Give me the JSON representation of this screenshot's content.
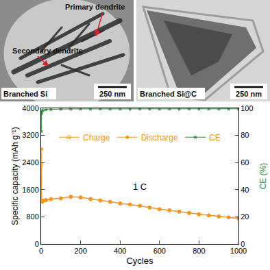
{
  "images": [
    {
      "label": "Branched Si",
      "scale": "250 nm",
      "arrows": [
        "Primary dendrite",
        "Secondary dendrite"
      ]
    },
    {
      "label": "Branched Si@C",
      "scale": "250 nm"
    }
  ],
  "chart_data": {
    "type": "line",
    "annotations": [
      "1 C"
    ],
    "x_label": "Cycles",
    "y_label": "Specific capacity (mAh g⁻¹)",
    "y2_label": "CE (%)",
    "x": [
      1,
      2,
      5,
      10,
      25,
      50,
      100,
      150,
      200,
      250,
      300,
      350,
      400,
      450,
      500,
      550,
      600,
      650,
      700,
      750,
      800,
      850,
      900,
      950,
      1000
    ],
    "series": [
      {
        "name": "Charge",
        "color": "#f7941d",
        "marker": "circle-open",
        "values": [
          2350,
          1280,
          1240,
          1270,
          1290,
          1320,
          1340,
          1390,
          1370,
          1320,
          1280,
          1240,
          1190,
          1160,
          1120,
          1070,
          1020,
          990,
          950,
          910,
          870,
          840,
          810,
          780,
          750
        ]
      },
      {
        "name": "Discharge",
        "color": "#f7941d",
        "marker": "circle",
        "values": [
          2800,
          1300,
          1250,
          1280,
          1300,
          1330,
          1350,
          1400,
          1380,
          1330,
          1290,
          1250,
          1200,
          1170,
          1130,
          1080,
          1030,
          1000,
          960,
          920,
          880,
          850,
          820,
          790,
          760
        ]
      },
      {
        "name": "CE",
        "color": "#2e8b3e",
        "marker": "star",
        "axis": "y2",
        "values": [
          83,
          96,
          98,
          98.5,
          99,
          99.2,
          99.4,
          99.5,
          99.5,
          99.5,
          99.6,
          99.6,
          99.6,
          99.6,
          99.6,
          99.6,
          99.6,
          99.6,
          99.6,
          99.6,
          99.6,
          99.6,
          99.6,
          99.6,
          99.6
        ]
      }
    ],
    "xlim": [
      0,
      1000
    ],
    "xticks": [
      0,
      200,
      400,
      600,
      800,
      1000
    ],
    "ylim": [
      0,
      4000
    ],
    "yticks": [
      0,
      800,
      1600,
      2400,
      3200,
      4000
    ],
    "y2lim": [
      0,
      100
    ],
    "y2ticks": [
      0,
      20,
      40,
      60,
      80,
      100
    ],
    "legend": "top",
    "grid": false
  }
}
